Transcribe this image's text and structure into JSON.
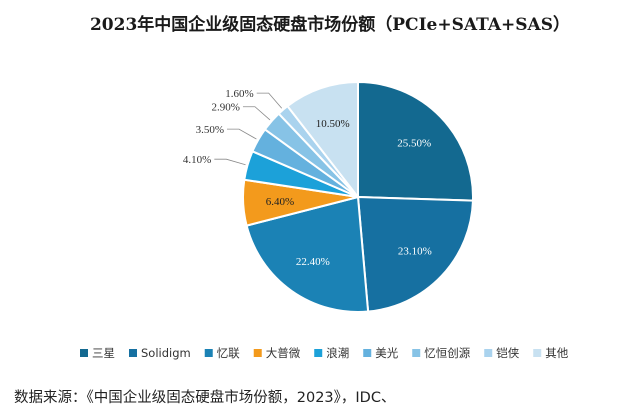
{
  "chart_data": {
    "type": "pie",
    "title": "2023年中国企业级固态硬盘市场份额（PCIe+SATA+SAS）",
    "unit": "%",
    "slices": [
      {
        "name": "三星",
        "value": 25.5,
        "label": "25.50%",
        "color": "#136990"
      },
      {
        "name": "Solidigm",
        "value": 23.1,
        "label": "23.10%",
        "color": "#1670a1"
      },
      {
        "name": "忆联",
        "value": 22.4,
        "label": "22.40%",
        "color": "#1b82b5"
      },
      {
        "name": "大普微",
        "value": 6.4,
        "label": "6.40%",
        "color": "#f39a1c"
      },
      {
        "name": "浪潮",
        "value": 4.1,
        "label": "4.10%",
        "color": "#1ca1d9"
      },
      {
        "name": "美光",
        "value": 3.5,
        "label": "3.50%",
        "color": "#64b1de"
      },
      {
        "name": "忆恒创源",
        "value": 2.9,
        "label": "2.90%",
        "color": "#87c3e6"
      },
      {
        "name": "铠侠",
        "value": 1.6,
        "label": "1.60%",
        "color": "#aad3ee"
      },
      {
        "name": "其他",
        "value": 10.5,
        "label": "10.50%",
        "color": "#c8e1f1"
      }
    ],
    "legend_position": "bottom"
  },
  "source_text": "数据来源：《中国企业级固态硬盘市场份额，2023》，IDC、"
}
